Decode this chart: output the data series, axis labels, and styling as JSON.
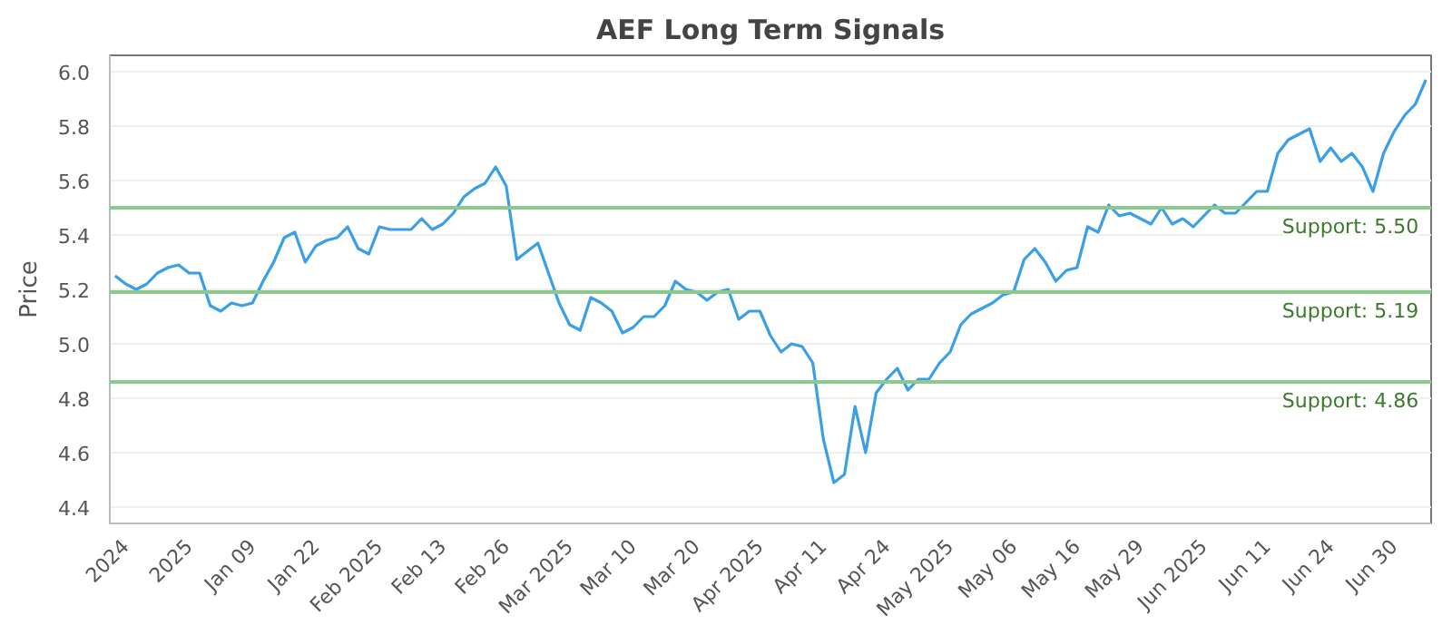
{
  "chart_data": {
    "type": "line",
    "title": "AEF Long Term Signals",
    "ylabel": "Price",
    "categories": [
      null,
      "2024",
      null,
      null,
      null,
      null,
      null,
      "2025",
      null,
      null,
      null,
      null,
      null,
      "Jan 09",
      null,
      null,
      null,
      null,
      null,
      "Jan 22",
      null,
      null,
      null,
      null,
      null,
      "Feb 2025",
      null,
      null,
      null,
      null,
      null,
      "Feb 13",
      null,
      null,
      null,
      null,
      null,
      "Feb 26",
      null,
      null,
      null,
      null,
      null,
      "Mar 2025",
      null,
      null,
      null,
      null,
      null,
      "Mar 10",
      null,
      null,
      null,
      null,
      null,
      "Mar 20",
      null,
      null,
      null,
      null,
      null,
      "Apr 2025",
      null,
      null,
      null,
      null,
      null,
      "Apr 11",
      null,
      null,
      null,
      null,
      null,
      "Apr 24",
      null,
      null,
      null,
      null,
      null,
      "May 2025",
      null,
      null,
      null,
      null,
      null,
      "May 06",
      null,
      null,
      null,
      null,
      null,
      "May 16",
      null,
      null,
      null,
      null,
      null,
      "May 29",
      null,
      null,
      null,
      null,
      null,
      "Jun 2025",
      null,
      null,
      null,
      null,
      null,
      "Jun 11",
      null,
      null,
      null,
      null,
      null,
      "Jun 24",
      null,
      null,
      null,
      null,
      null,
      "Jun 30",
      null,
      null,
      null
    ],
    "series": [
      {
        "color": "#3a9fe6",
        "values": [
          5.25,
          5.22,
          5.2,
          5.22,
          5.26,
          5.28,
          5.29,
          5.26,
          5.26,
          5.14,
          5.12,
          5.15,
          5.14,
          5.15,
          5.23,
          5.3,
          5.39,
          5.41,
          5.3,
          5.36,
          5.38,
          5.39,
          5.43,
          5.35,
          5.33,
          5.43,
          5.42,
          5.42,
          5.42,
          5.46,
          5.42,
          5.44,
          5.48,
          5.54,
          5.57,
          5.59,
          5.65,
          5.58,
          5.31,
          5.34,
          5.37,
          5.26,
          5.15,
          5.07,
          5.05,
          5.17,
          5.15,
          5.12,
          5.04,
          5.06,
          5.1,
          5.1,
          5.14,
          5.23,
          5.2,
          5.19,
          5.16,
          5.19,
          5.2,
          5.09,
          5.12,
          5.12,
          5.03,
          4.97,
          5.0,
          4.99,
          4.93,
          4.65,
          4.49,
          4.52,
          4.77,
          4.6,
          4.82,
          4.87,
          4.91,
          4.83,
          4.87,
          4.87,
          4.93,
          4.97,
          5.07,
          5.11,
          5.13,
          5.15,
          5.18,
          5.19,
          5.31,
          5.35,
          5.3,
          5.23,
          5.27,
          5.28,
          5.43,
          5.41,
          5.51,
          5.47,
          5.48,
          5.46,
          5.44,
          5.5,
          5.44,
          5.46,
          5.43,
          5.47,
          5.51,
          5.48,
          5.48,
          5.52,
          5.56,
          5.56,
          5.7,
          5.75,
          5.77,
          5.79,
          5.67,
          5.72,
          5.67,
          5.7,
          5.65,
          5.56,
          5.7,
          5.78,
          5.84,
          5.88,
          5.97
        ]
      }
    ],
    "ylim": [
      4.34,
      6.06
    ],
    "yticks": [
      {
        "value": 4.4,
        "label": "4.4"
      },
      {
        "value": 4.6,
        "label": "4.6"
      },
      {
        "value": 4.8,
        "label": "4.8"
      },
      {
        "value": 5.0,
        "label": "5.0"
      },
      {
        "value": 5.2,
        "label": "5.2"
      },
      {
        "value": 5.4,
        "label": "5.4"
      },
      {
        "value": 5.6,
        "label": "5.6"
      },
      {
        "value": 5.8,
        "label": "5.8"
      },
      {
        "value": 6.0,
        "label": "6.0"
      }
    ],
    "grid": "y",
    "marker": "none",
    "line_style": "solid",
    "ref_lines": [
      {
        "axis": "y",
        "value": 5.5,
        "label": "Support: 5.50",
        "color": "#8cc98c"
      },
      {
        "axis": "y",
        "value": 5.19,
        "label": "Support: 5.19",
        "color": "#8cc98c"
      },
      {
        "axis": "y",
        "value": 4.86,
        "label": "Support: 4.86",
        "color": "#8cc98c"
      }
    ]
  }
}
